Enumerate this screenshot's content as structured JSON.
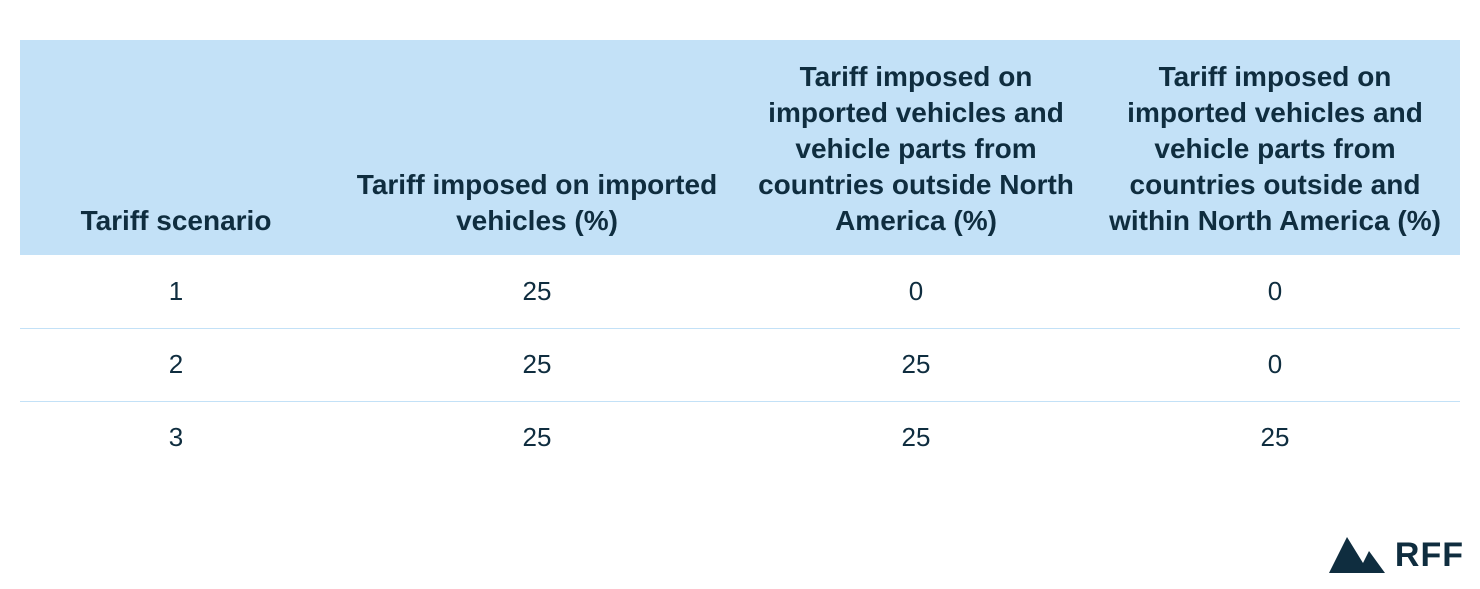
{
  "table": {
    "headers": [
      "Tariff scenario",
      "Tariff imposed on imported vehicles (%)",
      "Tariff imposed on imported vehicles and vehicle parts from countries outside North America (%)",
      "Tariff imposed on imported vehicles and vehicle parts from countries outside and within North America (%)"
    ],
    "rows": [
      [
        "1",
        "25",
        "0",
        "0"
      ],
      [
        "2",
        "25",
        "25",
        "0"
      ],
      [
        "3",
        "25",
        "25",
        "25"
      ]
    ]
  },
  "logo": {
    "text": "RFF",
    "icon": "mountain-logo-icon",
    "color": "#0f2d3f"
  },
  "colors": {
    "header_bg": "#c3e1f7",
    "text": "#0f2d3f",
    "row_divider": "#c3e1f7"
  }
}
